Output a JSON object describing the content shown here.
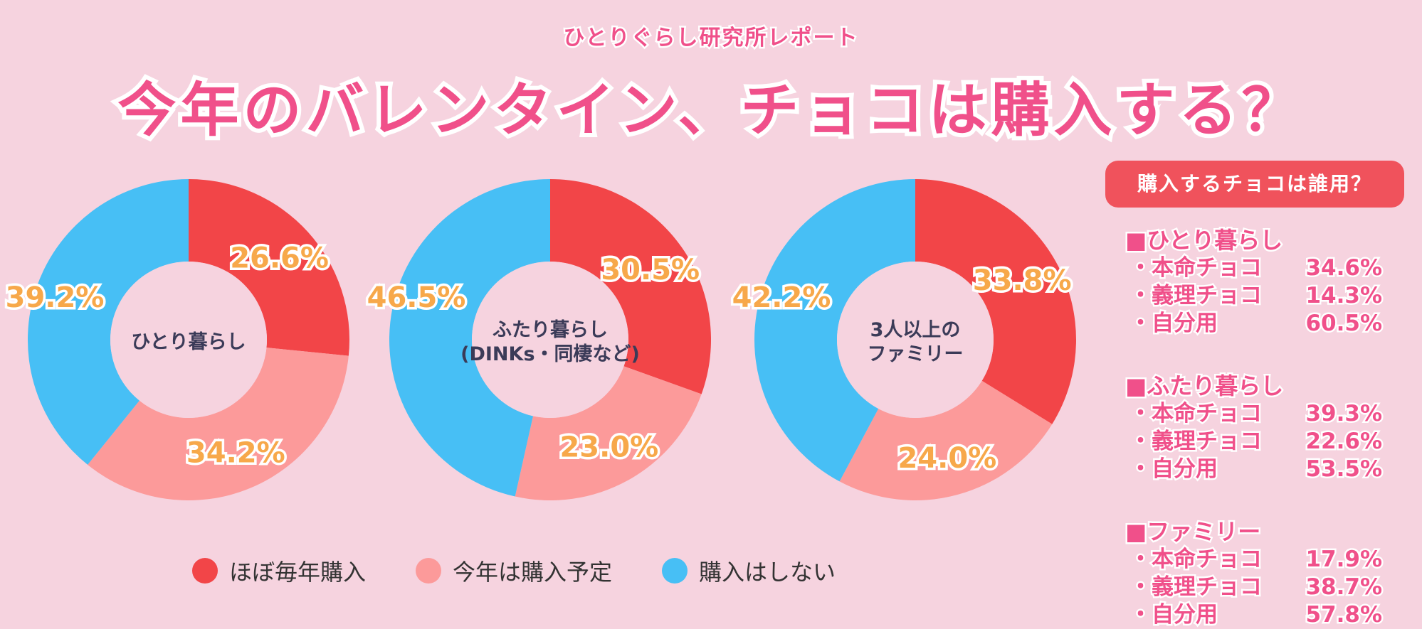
{
  "header": {
    "subtitle": "ひとりぐらし研究所レポート",
    "title": "今年のバレンタイン、チョコは購入する？"
  },
  "colors": {
    "every_year": "#f24548",
    "this_year": "#fc9a9a",
    "not_buy": "#47bff5",
    "accent": "#f0508a",
    "background": "#f6d3df",
    "center": "#f6d3df"
  },
  "chart_data": {
    "type": "donut",
    "legend": [
      "ほぼ毎年購入",
      "今年は購入予定",
      "購入はしない"
    ],
    "charts": [
      {
        "name": "ひとり暮らし",
        "center_lines": [
          "ひとり暮らし"
        ],
        "values": [
          26.6,
          34.2,
          39.2
        ],
        "labels": [
          "26.6%",
          "34.2%",
          "39.2%"
        ]
      },
      {
        "name": "ふたり暮らし(DINKs・同棲など)",
        "center_lines": [
          "ふたり暮らし",
          "(DINKs・同棲など)"
        ],
        "values": [
          30.5,
          23.0,
          46.5
        ],
        "labels": [
          "30.5%",
          "23.0%",
          "46.5%"
        ]
      },
      {
        "name": "3人以上のファミリー",
        "center_lines": [
          "3人以上の",
          "ファミリー"
        ],
        "values": [
          33.8,
          24.0,
          42.2
        ],
        "labels": [
          "33.8%",
          "24.0%",
          "42.2%"
        ]
      }
    ]
  },
  "side_panel": {
    "title": "購入するチョコは誰用？",
    "groups": [
      {
        "title": "■ひとり暮らし",
        "rows": [
          {
            "label": "・本命チョコ",
            "value": "34.6%"
          },
          {
            "label": "・義理チョコ",
            "value": "14.3%"
          },
          {
            "label": "・自分用",
            "value": "60.5%"
          }
        ]
      },
      {
        "title": "■ふたり暮らし",
        "rows": [
          {
            "label": "・本命チョコ",
            "value": "39.3%"
          },
          {
            "label": "・義理チョコ",
            "value": "22.6%"
          },
          {
            "label": "・自分用",
            "value": "53.5%"
          }
        ]
      },
      {
        "title": "■ファミリー",
        "rows": [
          {
            "label": "・本命チョコ",
            "value": "17.9%"
          },
          {
            "label": "・義理チョコ",
            "value": "38.7%"
          },
          {
            "label": "・自分用",
            "value": "57.8%"
          }
        ]
      }
    ]
  }
}
